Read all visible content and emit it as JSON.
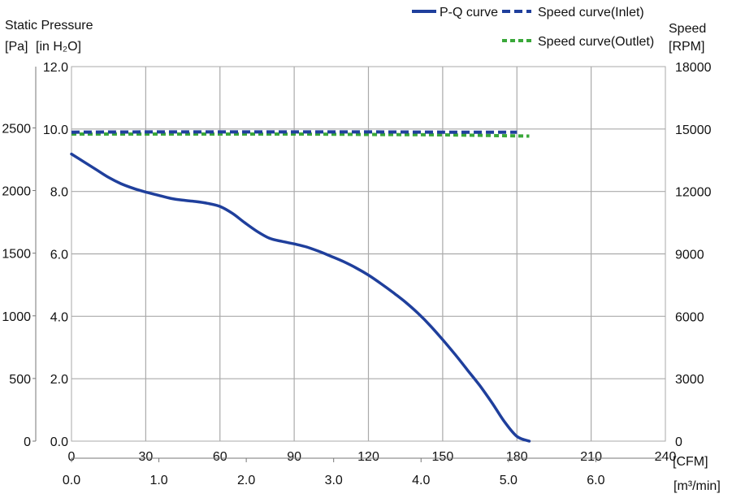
{
  "chart_data": {
    "type": "line",
    "left_axis_title": "Static Pressure",
    "left_axis_units_pa": "[Pa]",
    "left_axis_units_inh2o": "[in H₂O]",
    "right_axis_title": "Speed",
    "right_axis_units": "[RPM]",
    "x_unit_cfm": "[CFM]",
    "x_unit_m3": "[m³/min]",
    "inh2o_ticks": [
      "0.0",
      "2.0",
      "4.0",
      "6.0",
      "8.0",
      "10.0",
      "12.0"
    ],
    "pa_ticks": [
      "0",
      "500",
      "1000",
      "1500",
      "2000",
      "2500"
    ],
    "rpm_ticks": [
      "0",
      "3000",
      "6000",
      "9000",
      "12000",
      "15000",
      "18000"
    ],
    "cfm_ticks": [
      "0",
      "30",
      "60",
      "90",
      "120",
      "150",
      "180",
      "210",
      "240"
    ],
    "m3_ticks": [
      "0.0",
      "1.0",
      "2.0",
      "3.0",
      "4.0",
      "5.0",
      "6.0"
    ],
    "x_range_cfm": [
      0,
      240
    ],
    "y_range_inh2o": [
      0,
      12
    ],
    "y_range_rpm": [
      0,
      18000
    ],
    "grid": true,
    "legend_position": "top-right",
    "legend": [
      {
        "name": "P-Q curve",
        "color": "#1f3f9c",
        "style": "solid"
      },
      {
        "name": "Speed curve(Inlet)",
        "color": "#1f3f9c",
        "style": "dashed"
      },
      {
        "name": "Speed curve(Outlet)",
        "color": "#3aa83a",
        "style": "dashed"
      }
    ],
    "series": [
      {
        "name": "P-Q curve",
        "axis": "inH2O",
        "x": [
          0,
          5,
          10,
          15,
          20,
          25,
          30,
          35,
          40,
          45,
          50,
          55,
          60,
          65,
          70,
          75,
          80,
          85,
          90,
          95,
          100,
          105,
          110,
          115,
          120,
          125,
          130,
          135,
          140,
          145,
          150,
          155,
          160,
          165,
          170,
          175,
          180,
          185
        ],
        "y": [
          9.2,
          8.95,
          8.7,
          8.45,
          8.25,
          8.1,
          7.98,
          7.88,
          7.78,
          7.72,
          7.68,
          7.62,
          7.52,
          7.3,
          7.0,
          6.72,
          6.5,
          6.4,
          6.32,
          6.22,
          6.08,
          5.92,
          5.75,
          5.55,
          5.32,
          5.05,
          4.76,
          4.45,
          4.1,
          3.7,
          3.25,
          2.78,
          2.28,
          1.78,
          1.22,
          0.62,
          0.15,
          0.0
        ]
      },
      {
        "name": "Speed curve(Inlet)",
        "axis": "RPM",
        "x": [
          0,
          30,
          60,
          90,
          120,
          150,
          180
        ],
        "y": [
          14850,
          14860,
          14860,
          14860,
          14860,
          14850,
          14850
        ]
      },
      {
        "name": "Speed curve(Outlet)",
        "axis": "RPM",
        "x": [
          0,
          30,
          60,
          90,
          120,
          150,
          185
        ],
        "y": [
          14760,
          14760,
          14760,
          14760,
          14740,
          14720,
          14660
        ]
      }
    ]
  }
}
